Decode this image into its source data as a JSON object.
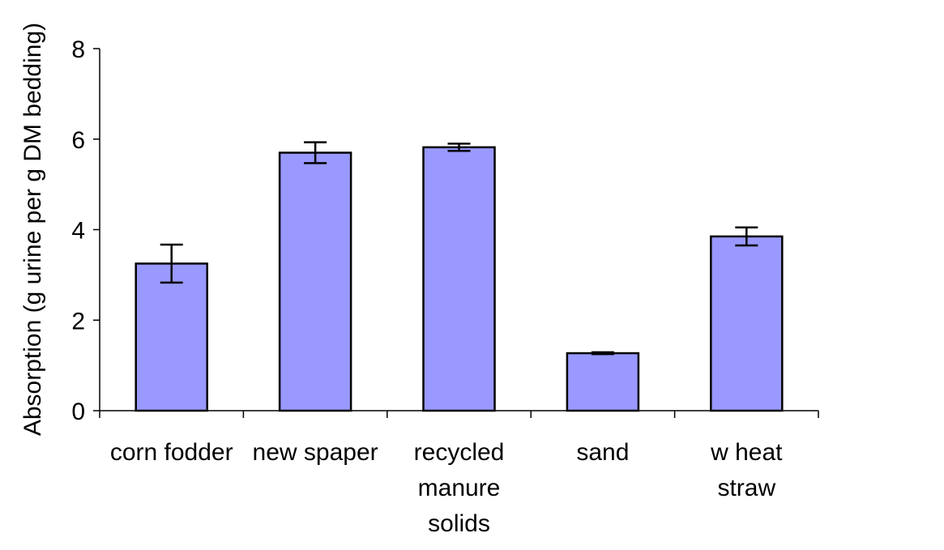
{
  "chart_data": {
    "type": "bar",
    "title": "",
    "xlabel": "",
    "ylabel": "Absorption (g urine per g DM bedding)",
    "categories": [
      [
        "corn fodder"
      ],
      [
        "new spaper"
      ],
      [
        "recycled",
        "manure",
        "solids"
      ],
      [
        "sand"
      ],
      [
        "w heat",
        "straw"
      ]
    ],
    "values": [
      3.25,
      5.7,
      5.82,
      1.27,
      3.85
    ],
    "error": [
      0.42,
      0.23,
      0.08,
      0.02,
      0.2
    ],
    "ylim": [
      0,
      8
    ],
    "yticks": [
      0,
      2,
      4,
      6,
      8
    ],
    "grid": false,
    "legend": "none",
    "colors": {
      "bar_fill": "#9999ff",
      "bar_stroke": "#000000",
      "axis": "#000000"
    }
  }
}
